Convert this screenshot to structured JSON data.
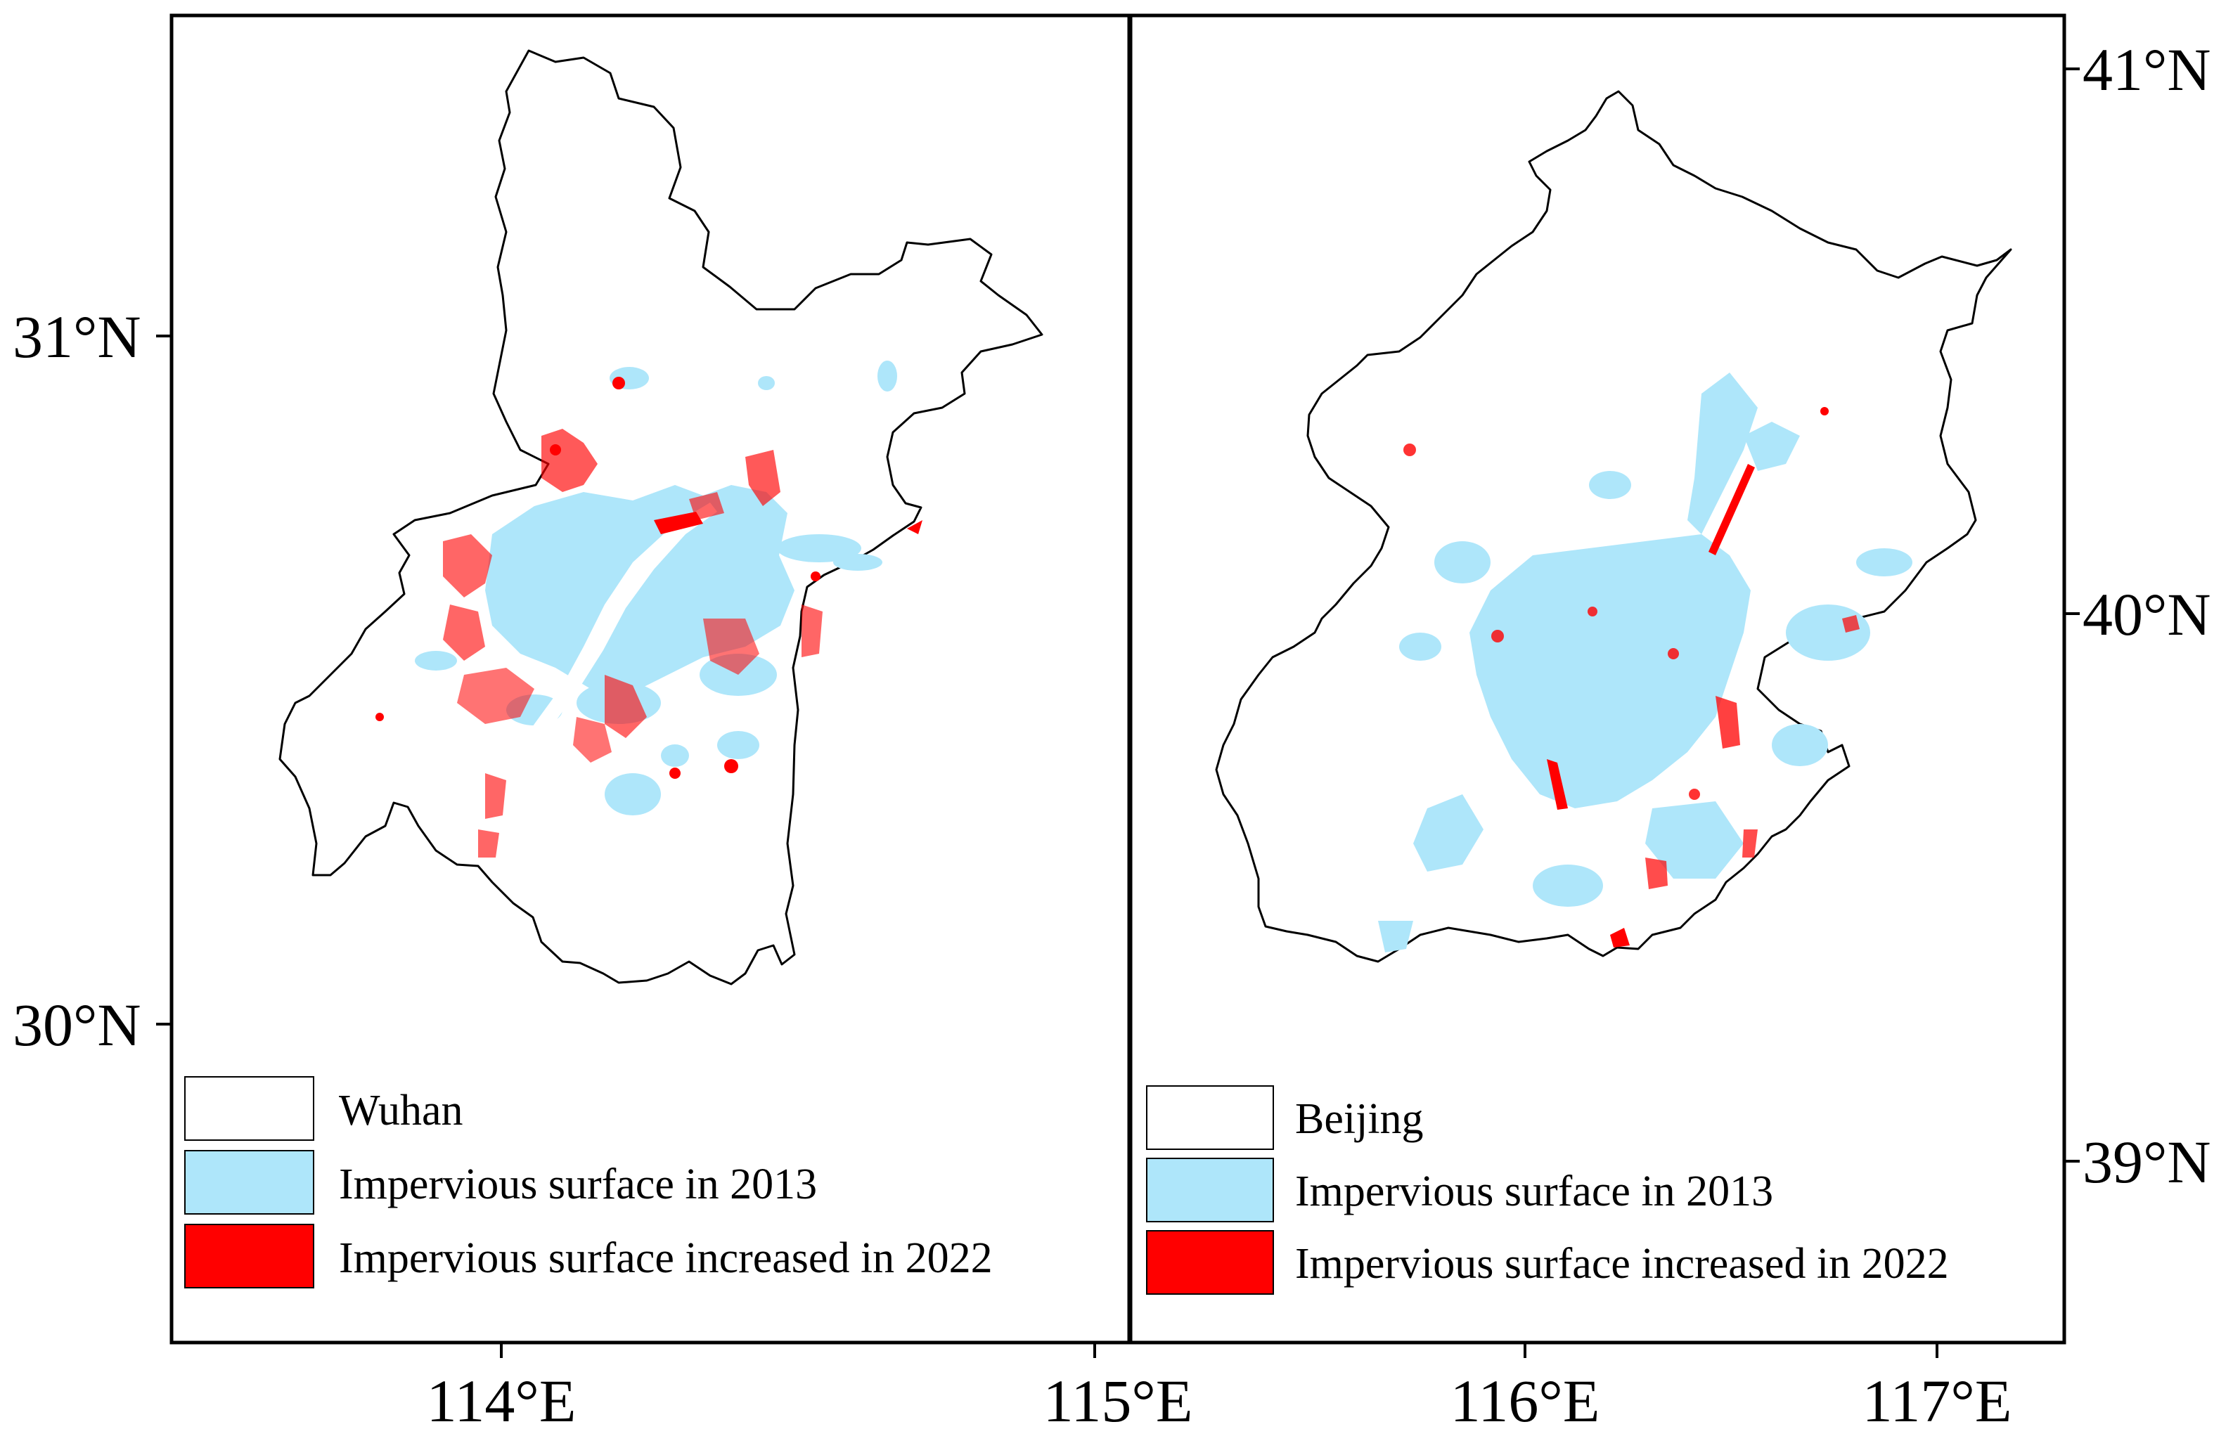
{
  "maps": [
    {
      "id": "wuhan",
      "lat_ticks": [
        "31°N",
        "30°N"
      ],
      "lon_ticks": [
        "114°E",
        "115°E"
      ],
      "legend": [
        {
          "label": "Wuhan",
          "color": "#ffffff"
        },
        {
          "label": "Impervious surface in 2013",
          "color": "#aee6fa"
        },
        {
          "label": "Impervious surface increased in 2022",
          "color": "#ff0000"
        }
      ]
    },
    {
      "id": "beijing",
      "lat_ticks": [
        "41°N",
        "40°N",
        "39°N"
      ],
      "lon_ticks": [
        "116°E",
        "117°E"
      ],
      "legend": [
        {
          "label": "Beijing",
          "color": "#ffffff"
        },
        {
          "label": "Impervious surface in 2013",
          "color": "#aee6fa"
        },
        {
          "label": "Impervious surface increased in 2022",
          "color": "#ff0000"
        }
      ]
    }
  ],
  "colors": {
    "frame": "#000000",
    "boundary": "#000000",
    "impervious_2013": "#aee6fa",
    "impervious_2022": "#ff0000"
  }
}
